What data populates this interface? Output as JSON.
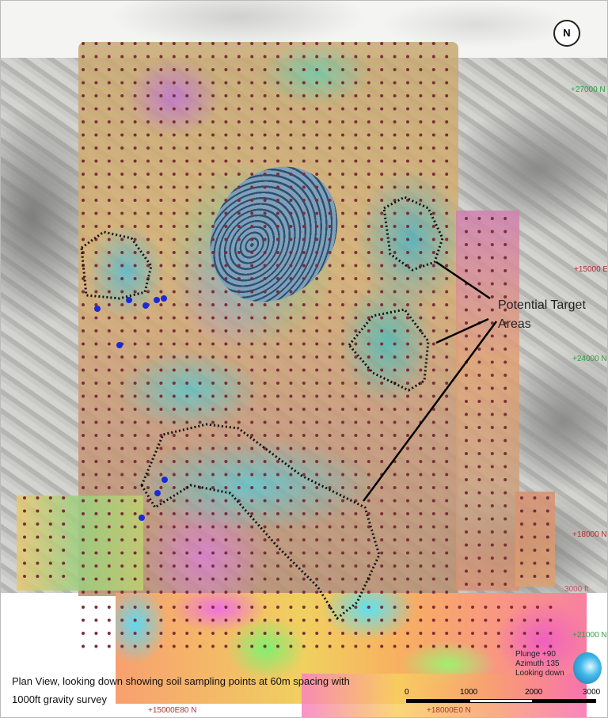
{
  "north_arrow": {
    "letter": "N"
  },
  "grid_labels": {
    "n27000": "+27000 N",
    "e15000": "+15000 E",
    "n24000": "+24000 N",
    "n18000": "+18000 N",
    "n21000": "+21000 N",
    "ft3000": "3000 ft",
    "bottom_left": "+15000E80 N",
    "bottom_mid": "+18000E0 N"
  },
  "callout": {
    "line1": "Potential Target",
    "line2": "Areas"
  },
  "caption": {
    "line1": "Plan View, looking down showing soil sampling points at 60m spacing with",
    "line2": "1000ft gravity survey"
  },
  "view_info": {
    "plunge": "Plunge +90",
    "azimuth": "Azimuth 135",
    "looking": "Looking down"
  },
  "scale_bar": {
    "ticks": [
      "0",
      "1000",
      "2000",
      "3000"
    ]
  },
  "colors": {
    "sample_point": "#7a2e3a",
    "drill_hole": "#1a2ad8",
    "target_outline": "#111111",
    "grid_north": "#2fa040",
    "grid_east": "#b03030"
  }
}
